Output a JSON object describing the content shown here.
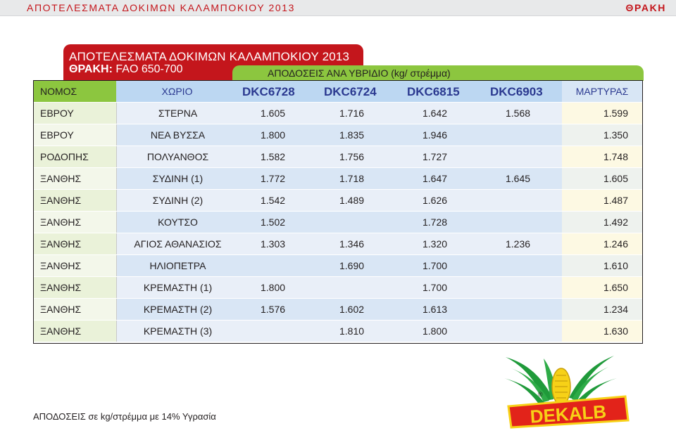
{
  "header": {
    "left": "ΑΠΟΤΕΛΕΣΜΑΤΑ ΔΟΚΙΜΩΝ ΚΑΛΑΜΠΟΚΙΟΥ 2013",
    "right": "ΘΡΑΚΗ"
  },
  "title_tab": {
    "title": "ΑΠΟΤΕΛΕΣΜΑΤΑ ΔΟΚΙΜΩΝ ΚΑΛΑΜΠΟΚΙΟΥ 2013",
    "region": "ΘΡΑΚΗ:",
    "fao": "FAO 650-700",
    "color": "#c4161c"
  },
  "yield_tab": {
    "label": "ΑΠΟΔΟΣΕΙΣ ΑΝΑ ΥΒΡΙΔΙΟ (kg/ στρέμμα)",
    "color": "#8cc63f"
  },
  "table": {
    "columns": {
      "nomos": "ΝΟΜΟΣ",
      "xorio": "ΧΩΡΙΟ",
      "hybrids": [
        "DKC6728",
        "DKC6724",
        "DKC6815",
        "DKC6903"
      ],
      "martyras": "ΜΑΡΤΥΡΑΣ"
    },
    "rows": [
      {
        "nomos": "ΕΒΡΟΥ",
        "xorio": "ΣΤΕΡΝΑ",
        "v1": "1.605",
        "v2": "1.716",
        "v3": "1.642",
        "v4": "1.568",
        "martyras": "1.599"
      },
      {
        "nomos": "ΕΒΡΟΥ",
        "xorio": "ΝΕΑ ΒΥΣΣΑ",
        "v1": "1.800",
        "v2": "1.835",
        "v3": "1.946",
        "v4": "",
        "martyras": "1.350"
      },
      {
        "nomos": "ΡΟΔΟΠΗΣ",
        "xorio": "ΠΟΛΥΑΝΘΟΣ",
        "v1": "1.582",
        "v2": "1.756",
        "v3": "1.727",
        "v4": "",
        "martyras": "1.748"
      },
      {
        "nomos": "ΞΑΝΘΗΣ",
        "xorio": "ΣΥΔΙΝΗ (1)",
        "v1": "1.772",
        "v2": "1.718",
        "v3": "1.647",
        "v4": "1.645",
        "martyras": "1.605"
      },
      {
        "nomos": "ΞΑΝΘΗΣ",
        "xorio": "ΣΥΔΙΝΗ (2)",
        "v1": "1.542",
        "v2": "1.489",
        "v3": "1.626",
        "v4": "",
        "martyras": "1.487"
      },
      {
        "nomos": "ΞΑΝΘΗΣ",
        "xorio": "ΚΟΥΤΣΟ",
        "v1": "1.502",
        "v2": "",
        "v3": "1.728",
        "v4": "",
        "martyras": "1.492"
      },
      {
        "nomos": "ΞΑΝΘΗΣ",
        "xorio": "ΑΓΙΟΣ ΑΘΑΝΑΣΙΟΣ",
        "v1": "1.303",
        "v2": "1.346",
        "v3": "1.320",
        "v4": "1.236",
        "martyras": "1.246"
      },
      {
        "nomos": "ΞΑΝΘΗΣ",
        "xorio": "ΗΛΙΟΠΕΤΡΑ",
        "v1": "",
        "v2": "1.690",
        "v3": "1.700",
        "v4": "",
        "martyras": "1.610"
      },
      {
        "nomos": "ΞΑΝΘΗΣ",
        "xorio": "ΚΡΕΜΑΣΤΗ (1)",
        "v1": "1.800",
        "v2": "",
        "v3": "1.700",
        "v4": "",
        "martyras": "1.650"
      },
      {
        "nomos": "ΞΑΝΘΗΣ",
        "xorio": "ΚΡΕΜΑΣΤΗ (2)",
        "v1": "1.576",
        "v2": "1.602",
        "v3": "1.613",
        "v4": "",
        "martyras": "1.234"
      },
      {
        "nomos": "ΞΑΝΘΗΣ",
        "xorio": "ΚΡΕΜΑΣΤΗ (3)",
        "v1": "",
        "v2": "1.810",
        "v3": "1.800",
        "v4": "",
        "martyras": "1.630"
      }
    ]
  },
  "footnote": "ΑΠΟΔΟΣΕΙΣ σε kg/στρέμμα με 14% Υγρασία",
  "logo": {
    "text": "DEKALB",
    "registered": "®",
    "icon": "winged-corn-icon",
    "colors": {
      "green": "#1f9a3a",
      "yellow": "#f7d117",
      "red": "#e2231a"
    }
  }
}
